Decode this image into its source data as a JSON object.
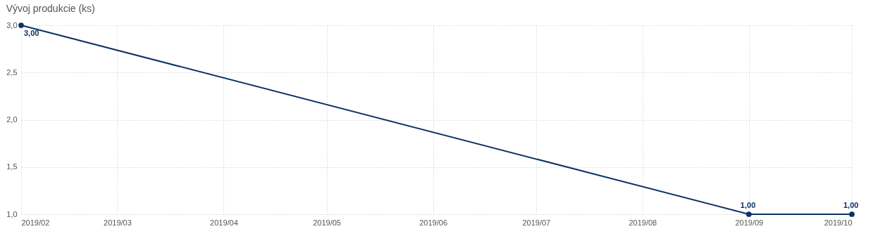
{
  "chart_data": {
    "type": "line",
    "title": "Vývoj produkcie (ks)",
    "x": [
      "2019-02",
      "2019-09",
      "2019-10"
    ],
    "series": [
      {
        "color": "#0b3263",
        "values": [
          3,
          1,
          1
        ],
        "value_labels": [
          "3,00",
          "1,00",
          "1,00"
        ]
      }
    ],
    "xlim": [
      "2019-02",
      "2019-10"
    ],
    "xticks": [
      {
        "value": "2019-02",
        "label": "2019/02"
      },
      {
        "value": "2019-03",
        "label": "2019/03"
      },
      {
        "value": "2019-04",
        "label": "2019/04"
      },
      {
        "value": "2019-05",
        "label": "2019/05"
      },
      {
        "value": "2019-06",
        "label": "2019/06"
      },
      {
        "value": "2019-07",
        "label": "2019/07"
      },
      {
        "value": "2019-08",
        "label": "2019/08"
      },
      {
        "value": "2019-09",
        "label": "2019/09"
      },
      {
        "value": "2019-10",
        "label": "2019/10"
      }
    ],
    "ylim": [
      1,
      3
    ],
    "yticks": [
      {
        "value": 1,
        "label": "1,0"
      },
      {
        "value": 1.5,
        "label": "1,5"
      },
      {
        "value": 2,
        "label": "2,0"
      },
      {
        "value": 2.5,
        "label": "2,5"
      },
      {
        "value": 3,
        "label": "3,0"
      }
    ],
    "grid": true,
    "marker": "circle",
    "line_style": "solid"
  }
}
